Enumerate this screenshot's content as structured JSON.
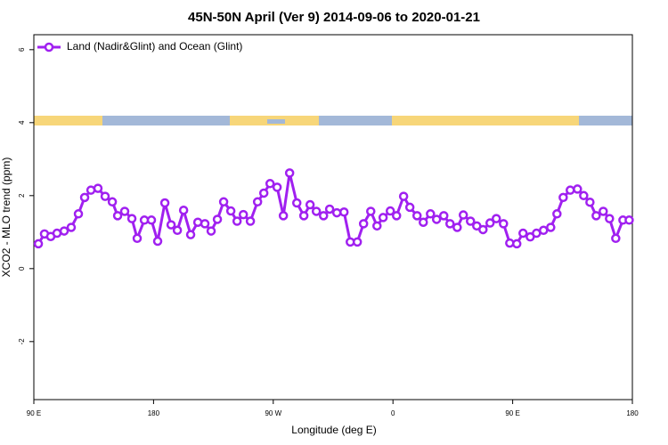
{
  "chart_data": {
    "type": "line",
    "title": "45N-50N April (Ver 9)   2014-09-06 to 2020-01-21",
    "x_label": "Longitude (deg E)",
    "y_label": "XCO2 - MLO trend (ppm)",
    "legend": "top-left",
    "xlim": [
      90,
      540
    ],
    "xticks": [
      {
        "value": 90,
        "label": "90 E"
      },
      {
        "value": 180,
        "label": "180"
      },
      {
        "value": 270,
        "label": "90 W"
      },
      {
        "value": 360,
        "label": "0"
      },
      {
        "value": 450,
        "label": "90 E"
      },
      {
        "value": 540,
        "label": "180"
      }
    ],
    "ylim": [
      -3.59,
      6.41
    ],
    "yticks": [
      -2,
      0,
      2,
      4,
      6
    ],
    "x": [
      93.4,
      98,
      102.7,
      107.4,
      112.8,
      118.1,
      123.5,
      128.2,
      132.9,
      138.2,
      143.6,
      149,
      153,
      158.3,
      163.7,
      167.7,
      173.1,
      178.4,
      183.1,
      188.5,
      193.2,
      197.9,
      202.6,
      207.9,
      213.3,
      218.6,
      223.3,
      228,
      232.7,
      238.1,
      242.8,
      247.5,
      252.8,
      258.2,
      262.9,
      267.6,
      272.9,
      277.6,
      282.3,
      287.7,
      293,
      297.7,
      302.4,
      307.8,
      312.4,
      317.8,
      323.2,
      327.9,
      333.2,
      337.9,
      343.3,
      348,
      352.6,
      358,
      362.7,
      368,
      372.7,
      378.1,
      382.8,
      388.2,
      392.8,
      398.2,
      402.9,
      408.3,
      412.9,
      418.3,
      423,
      427.7,
      433,
      437.7,
      443.1,
      447.8,
      453.1,
      457.8,
      463.2,
      467.9,
      473.2,
      478.6,
      483.3,
      488,
      493.3,
      498.7,
      503.4,
      508.1,
      512.8,
      518.1,
      522.8,
      527.5,
      532.9,
      537.6
    ],
    "series": [
      {
        "name": "Land (Nadir&Glint) and Ocean (Glint)",
        "color": "#a020f0",
        "values": [
          0.68,
          0.95,
          0.88,
          0.97,
          1.03,
          1.13,
          1.5,
          1.95,
          2.15,
          2.2,
          1.98,
          1.83,
          1.45,
          1.57,
          1.37,
          0.83,
          1.33,
          1.33,
          0.75,
          1.8,
          1.2,
          1.05,
          1.6,
          0.93,
          1.27,
          1.23,
          1.03,
          1.35,
          1.83,
          1.58,
          1.3,
          1.48,
          1.3,
          1.83,
          2.07,
          2.33,
          2.23,
          1.45,
          2.62,
          1.8,
          1.45,
          1.75,
          1.57,
          1.45,
          1.63,
          1.53,
          1.55,
          0.73,
          0.73,
          1.23,
          1.57,
          1.17,
          1.4,
          1.58,
          1.45,
          1.98,
          1.68,
          1.45,
          1.27,
          1.5,
          1.35,
          1.45,
          1.23,
          1.13,
          1.47,
          1.3,
          1.17,
          1.07,
          1.25,
          1.37,
          1.23,
          0.7,
          0.68,
          0.97,
          0.87,
          0.97,
          1.05,
          1.13,
          1.5,
          1.95,
          2.15,
          2.18,
          2.0,
          1.82,
          1.45,
          1.57,
          1.37,
          0.83,
          1.33,
          1.33
        ]
      }
    ]
  }
}
